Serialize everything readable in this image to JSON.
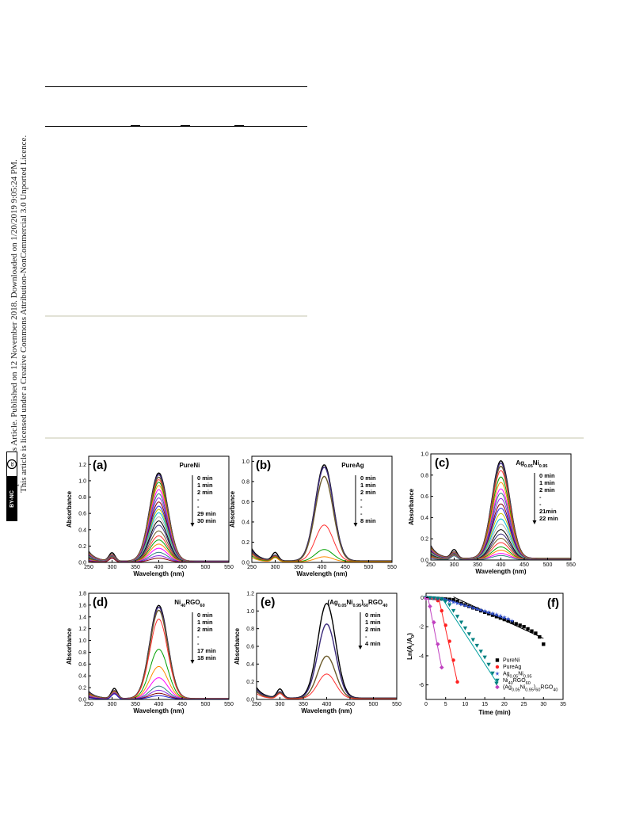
{
  "sidebar": {
    "line1": "Open Access Article. Published on 12 November 2018. Downloaded on 1/20/2019 9:05:24 PM.",
    "line2": "This article is licensed under a Creative Commons Attribution-NonCommercial 3.0 Unported Licence.",
    "badge_cc": "cc",
    "badge_text": "BY-NC"
  },
  "colors": {
    "rule": "#000000",
    "rule_light": "#d6d6c8",
    "curve_palette": [
      "#000000",
      "#3a2a7a",
      "#6b5a2a",
      "#ff3030",
      "#00a000",
      "#ff8c00",
      "#ff00ff",
      "#2f7f7f",
      "#8a2be2",
      "#800000",
      "#1f1fd0",
      "#c8c800",
      "#00bcd4",
      "#b0b0b0"
    ]
  },
  "chart_data": [
    {
      "id": "a",
      "type": "line",
      "panel_label": "(a)",
      "title": "Pure Ni",
      "xlabel": "Wavelength (nm)",
      "ylabel": "Absorbance",
      "xlim": [
        250,
        550
      ],
      "ylim": [
        0,
        1.3
      ],
      "xticks": [
        250,
        300,
        350,
        400,
        450,
        500,
        550
      ],
      "yticks": [
        0.0,
        0.2,
        0.4,
        0.6,
        0.8,
        1.0,
        1.2
      ],
      "ytick_labels": [
        "0.0",
        "0.2",
        "0.4",
        "0.6",
        "0.8",
        "1.0",
        "1.2"
      ],
      "legend": [
        "0 min",
        "1 min",
        "2 min",
        "-",
        "-",
        "29 min",
        "30 min"
      ],
      "peak_x": 400,
      "peak_values": [
        1.08,
        1.06,
        1.03,
        1.0,
        0.97,
        0.93,
        0.88,
        0.83,
        0.78,
        0.73,
        0.68,
        0.64,
        0.6,
        0.55,
        0.5,
        0.45,
        0.38,
        0.32,
        0.27,
        0.22,
        0.17,
        0.12,
        0.08,
        0.05
      ],
      "uv_peak_x": 300,
      "uv_peak_values": [
        0.1,
        0.08
      ]
    },
    {
      "id": "b",
      "type": "line",
      "panel_label": "(b)",
      "title": "Pure Ag",
      "xlabel": "Wavelength (nm)",
      "ylabel": "Absorbance",
      "xlim": [
        250,
        550
      ],
      "ylim": [
        0,
        1.05
      ],
      "xticks": [
        250,
        300,
        350,
        400,
        450,
        500,
        550
      ],
      "yticks": [
        0.0,
        0.2,
        0.4,
        0.6,
        0.8,
        1.0
      ],
      "ytick_labels": [
        "0.0",
        "0.2",
        "0.4",
        "0.6",
        "0.8",
        "1.0"
      ],
      "legend": [
        "0 min",
        "1 min",
        "2 min",
        "-",
        "-",
        "-",
        "8 min"
      ],
      "peak_x": 405,
      "peak_values": [
        0.95,
        0.93,
        0.84,
        0.36,
        0.12,
        0.05
      ],
      "uv_peak_x": 300,
      "uv_peak_values": [
        0.08,
        0.06
      ]
    },
    {
      "id": "c",
      "type": "line",
      "panel_label": "(c)",
      "title": "Ag0.05Ni0.95",
      "xlabel": "Wavelength (nm)",
      "ylabel": "Absorbance",
      "xlim": [
        250,
        550
      ],
      "ylim": [
        0,
        1.0
      ],
      "xticks": [
        250,
        300,
        350,
        400,
        450,
        500,
        550
      ],
      "yticks": [
        0.0,
        0.2,
        0.4,
        0.6,
        0.8,
        1.0
      ],
      "ytick_labels": [
        "0.0",
        "0.2",
        "0.4",
        "0.6",
        "0.8",
        "1.0"
      ],
      "legend": [
        "0 min",
        "1 min",
        "2 min",
        "-",
        "-",
        "21min",
        "22 min"
      ],
      "peak_x": 400,
      "peak_values": [
        0.92,
        0.9,
        0.87,
        0.83,
        0.77,
        0.72,
        0.66,
        0.62,
        0.57,
        0.52,
        0.48,
        0.43,
        0.38,
        0.33,
        0.28,
        0.24,
        0.2,
        0.16,
        0.12,
        0.09,
        0.06,
        0.04
      ],
      "uv_peak_x": 300,
      "uv_peak_values": [
        0.08,
        0.06
      ]
    },
    {
      "id": "d",
      "type": "line",
      "panel_label": "(d)",
      "title": "Ni40RGO60",
      "xlabel": "Wavelength (nm)",
      "ylabel": "Absorbance",
      "xlim": [
        250,
        550
      ],
      "ylim": [
        0,
        1.8
      ],
      "xticks": [
        250,
        300,
        350,
        400,
        450,
        500,
        550
      ],
      "yticks": [
        0.0,
        0.2,
        0.4,
        0.6,
        0.8,
        1.0,
        1.2,
        1.4,
        1.6,
        1.8
      ],
      "ytick_labels": [
        "0.0",
        "0.2",
        "0.4",
        "0.6",
        "0.8",
        "1.0",
        "1.2",
        "1.4",
        "1.6",
        "1.8"
      ],
      "legend": [
        "0 min",
        "1 min",
        "2 min",
        "-",
        "-",
        "17 min",
        "18 min"
      ],
      "peak_x": 400,
      "peak_values": [
        1.58,
        1.55,
        1.5,
        1.35,
        0.84,
        0.55,
        0.36,
        0.22,
        0.15,
        0.1,
        0.06
      ],
      "uv_peak_x": 305,
      "uv_peak_values": [
        0.17,
        0.14
      ]
    },
    {
      "id": "e",
      "type": "line",
      "panel_label": "(e)",
      "title": "(Ag0.05Ni0.95)60RGO40",
      "xlabel": "Wavelength (nm)",
      "ylabel": "Absorbance",
      "xlim": [
        250,
        550
      ],
      "ylim": [
        0,
        1.2
      ],
      "xticks": [
        250,
        300,
        350,
        400,
        450,
        500,
        550
      ],
      "yticks": [
        0.0,
        0.2,
        0.4,
        0.6,
        0.8,
        1.0,
        1.2
      ],
      "ytick_labels": [
        "0.0",
        "0.2",
        "0.4",
        "0.6",
        "0.8",
        "1.0",
        "1.2"
      ],
      "legend": [
        "0 min",
        "1 min",
        "2 min",
        "-",
        "4 min"
      ],
      "peak_x": 400,
      "peak_values": [
        1.07,
        0.84,
        0.48,
        0.28
      ],
      "uv_peak_x": 300,
      "uv_peak_values": [
        0.1,
        0.08
      ]
    },
    {
      "id": "f",
      "type": "scatter",
      "panel_label": "(f)",
      "xlabel": "Time (min)",
      "ylabel": "Ln(At/A0)",
      "xlim": [
        0,
        35
      ],
      "ylim": [
        -7,
        0.3
      ],
      "xticks": [
        0,
        5,
        10,
        15,
        20,
        25,
        30,
        35
      ],
      "yticks": [
        0,
        -2,
        -4,
        -6
      ],
      "ytick_labels": [
        "0",
        "-2",
        "-4",
        "-6"
      ],
      "series": [
        {
          "name": "Pure Ni",
          "marker": "square",
          "x": [
            0,
            1,
            2,
            3,
            4,
            5,
            6,
            7,
            8,
            9,
            10,
            11,
            12,
            13,
            14,
            15,
            16,
            17,
            18,
            19,
            20,
            21,
            22,
            23,
            24,
            25,
            26,
            27,
            28,
            29,
            30
          ],
          "y": [
            0,
            -0.02,
            -0.04,
            -0.06,
            -0.08,
            -0.1,
            -0.12,
            -0.15,
            -0.25,
            -0.4,
            -0.5,
            -0.6,
            -0.7,
            -0.78,
            -0.9,
            -1.0,
            -1.1,
            -1.2,
            -1.3,
            -1.4,
            -1.5,
            -1.6,
            -1.7,
            -1.8,
            -1.9,
            -2.0,
            -2.15,
            -2.3,
            -2.45,
            -2.7,
            -3.2
          ],
          "fit": [
            [
              7,
              0.05
            ],
            [
              30,
              -2.8
            ]
          ]
        },
        {
          "name": "Pure Ag",
          "marker": "circle",
          "x": [
            0,
            1,
            2,
            3,
            4,
            5,
            6,
            7,
            8
          ],
          "y": [
            0,
            -0.02,
            -0.05,
            -0.2,
            -0.9,
            -1.9,
            -3.0,
            -4.3,
            -5.8
          ],
          "fit": [
            [
              3.2,
              0
            ],
            [
              8,
              -5.8
            ]
          ]
        },
        {
          "name": "Ag0.05Ni0.95",
          "marker": "star",
          "x": [
            0,
            1,
            2,
            3,
            4,
            5,
            6,
            7,
            8,
            9,
            10,
            11,
            12,
            13,
            14,
            15,
            16,
            17,
            18,
            19,
            20,
            21,
            22
          ],
          "y": [
            0,
            -0.02,
            -0.05,
            -0.08,
            -0.1,
            -0.15,
            -0.25,
            -0.32,
            -0.4,
            -0.48,
            -0.55,
            -0.62,
            -0.7,
            -0.78,
            -0.85,
            -0.92,
            -1.0,
            -1.08,
            -1.15,
            -1.25,
            -1.35,
            -1.45,
            -1.6
          ],
          "fit": [
            [
              4,
              0
            ],
            [
              22,
              -1.6
            ]
          ]
        },
        {
          "name": "Ni40RGO60",
          "marker": "triangle-down",
          "x": [
            0,
            1,
            2,
            3,
            4,
            5,
            6,
            7,
            8,
            9,
            10,
            11,
            12,
            13,
            14,
            15,
            16,
            17,
            18
          ],
          "y": [
            0,
            -0.02,
            -0.03,
            -0.06,
            -0.1,
            -0.25,
            -0.5,
            -0.9,
            -1.3,
            -1.7,
            -2.1,
            -2.5,
            -2.9,
            -3.3,
            -3.7,
            -4.1,
            -4.6,
            -5.2,
            -5.9
          ],
          "fit": [
            [
              4,
              0
            ],
            [
              18,
              -5.8
            ]
          ]
        },
        {
          "name": "(Ag0.05Ni0.95)60RGO40",
          "marker": "diamond",
          "x": [
            0,
            1,
            2,
            3,
            4
          ],
          "y": [
            -0.05,
            -0.6,
            -1.7,
            -3.2,
            -4.8
          ],
          "fit": [
            [
              0.5,
              0
            ],
            [
              4,
              -4.8
            ]
          ]
        }
      ]
    }
  ]
}
